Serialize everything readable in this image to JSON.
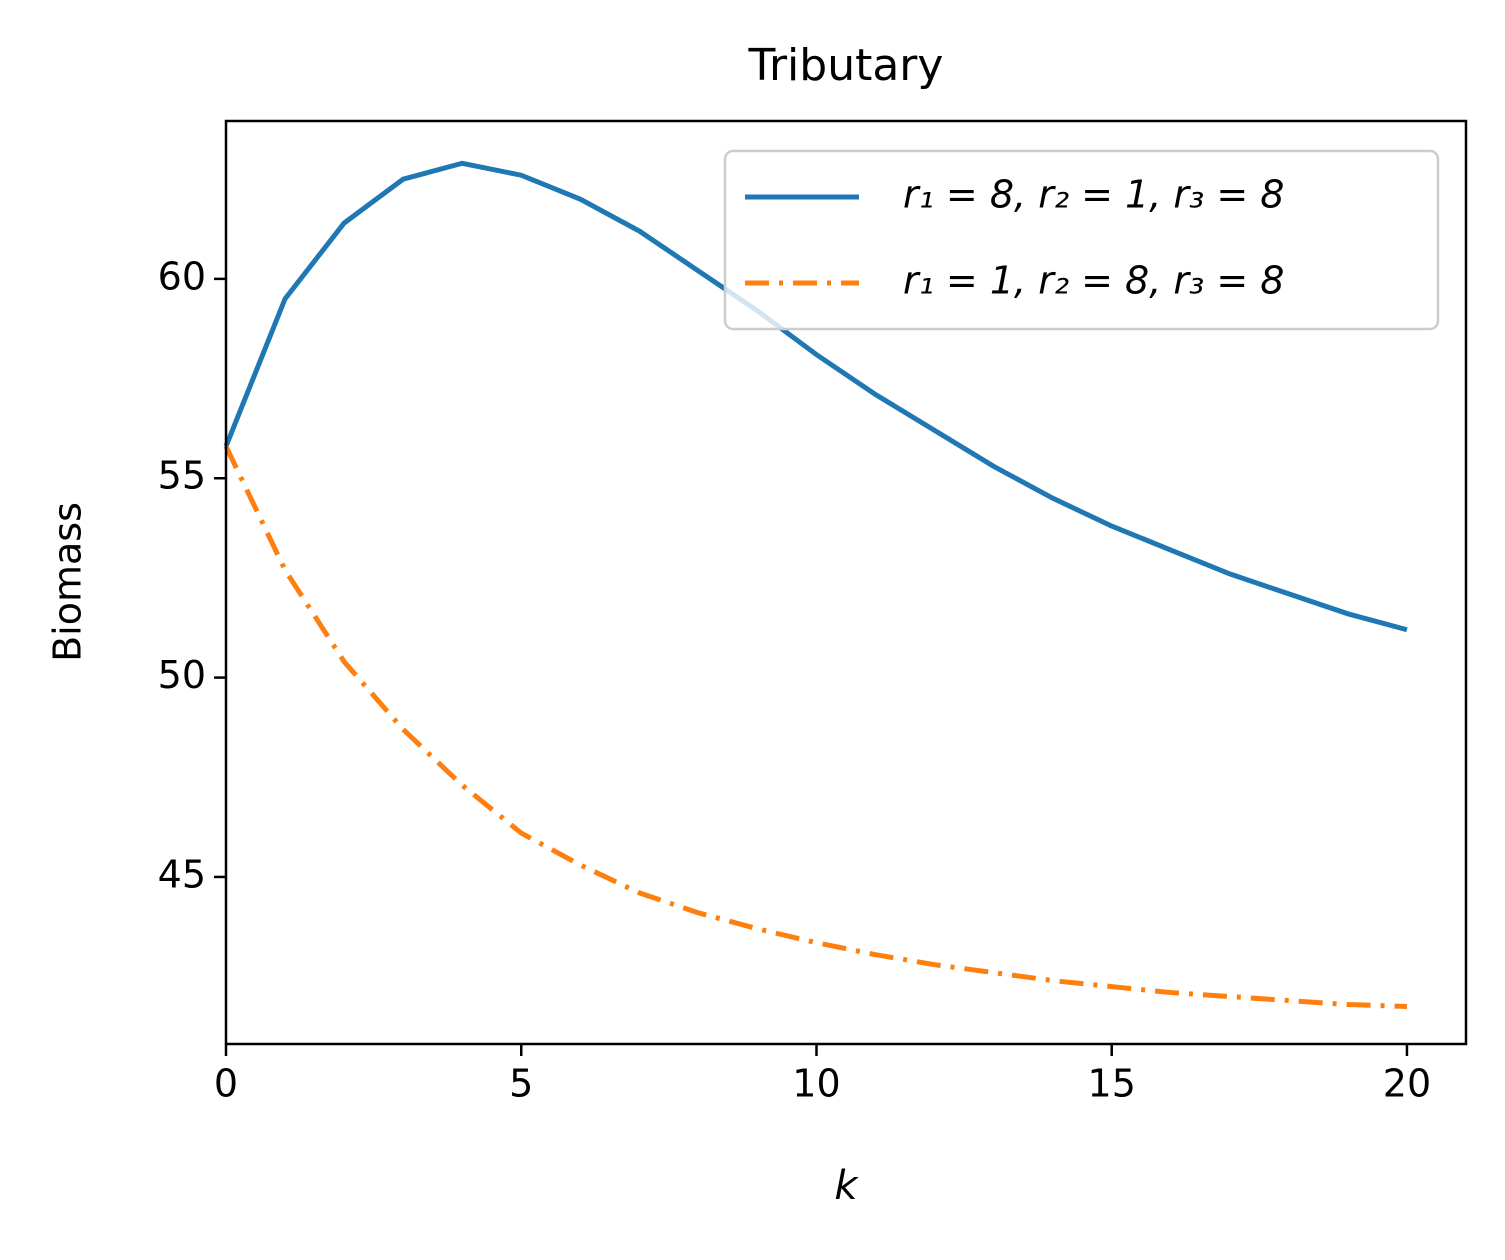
{
  "chart_data": {
    "type": "line",
    "title": "Tributary",
    "x_label": "k",
    "y_label": "Biomass",
    "x": [
      0,
      1,
      2,
      3,
      4,
      5,
      6,
      7,
      8,
      9,
      10,
      11,
      12,
      13,
      14,
      15,
      16,
      17,
      18,
      19,
      20
    ],
    "series": [
      {
        "name": "r₁ = 8, r₂ = 1, r₃ = 8",
        "color": "#1f77b4",
        "style": "solid",
        "values": [
          55.8,
          59.5,
          61.4,
          62.5,
          62.9,
          62.6,
          62.0,
          61.2,
          60.2,
          59.2,
          58.1,
          57.1,
          56.2,
          55.3,
          54.5,
          53.8,
          53.2,
          52.6,
          52.1,
          51.6,
          51.2
        ]
      },
      {
        "name": "r₁ = 1, r₂ = 8, r₃ = 8",
        "color": "#ff7f0e",
        "style": "dashdot",
        "values": [
          55.8,
          52.7,
          50.4,
          48.7,
          47.3,
          46.1,
          45.3,
          44.6,
          44.1,
          43.7,
          43.35,
          43.05,
          42.8,
          42.6,
          42.4,
          42.25,
          42.1,
          42.0,
          41.9,
          41.8,
          41.75
        ]
      }
    ],
    "xlim": [
      0,
      21
    ],
    "xticks": [
      0,
      5,
      10,
      15,
      20
    ],
    "ylim": [
      40.81,
      63.96
    ],
    "yticks": [
      45,
      50,
      55,
      60
    ],
    "grid": false,
    "legend": "upper right"
  }
}
